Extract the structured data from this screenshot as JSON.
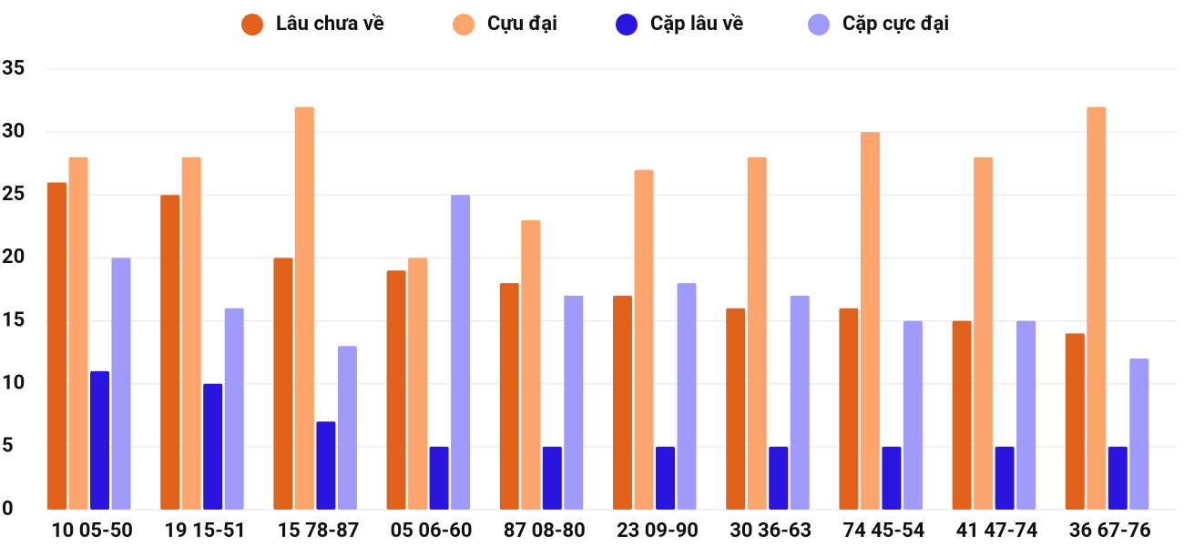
{
  "chart_data": {
    "type": "bar",
    "categories": [
      "10 05-50",
      "19 15-51",
      "15 78-87",
      "05 06-60",
      "87 08-80",
      "23 09-90",
      "30 36-63",
      "74 45-54",
      "41 47-74",
      "36 67-76"
    ],
    "series": [
      {
        "name": "Lâu chưa về",
        "color": "#e2621b",
        "values": [
          26,
          25,
          20,
          19,
          18,
          17,
          16,
          16,
          15,
          14
        ]
      },
      {
        "name": "Cựu đại",
        "color": "#fda56c",
        "values": [
          28,
          28,
          32,
          20,
          23,
          27,
          28,
          30,
          28,
          32
        ]
      },
      {
        "name": "Cặp lâu về",
        "color": "#2a14e0",
        "values": [
          11,
          10,
          7,
          5,
          5,
          5,
          5,
          5,
          5,
          5
        ]
      },
      {
        "name": "Cặp cực đại",
        "color": "#a09bfb",
        "values": [
          20,
          16,
          13,
          25,
          17,
          18,
          17,
          15,
          15,
          12
        ]
      }
    ],
    "ylim": [
      0,
      35
    ],
    "yticks": [
      0,
      5,
      10,
      15,
      20,
      25,
      30,
      35
    ],
    "grid": true,
    "legend": "top"
  }
}
